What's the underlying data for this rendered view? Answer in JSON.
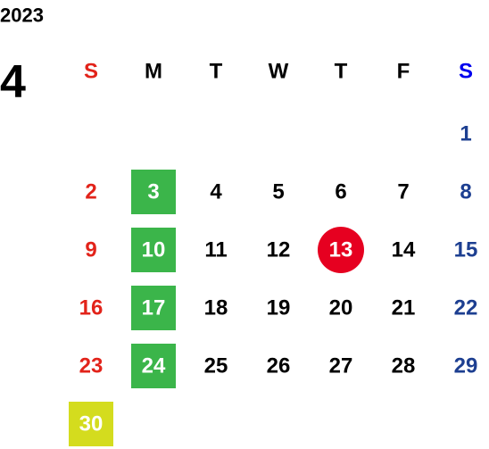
{
  "year": "2023",
  "month": "4",
  "weekdays": [
    "S",
    "M",
    "T",
    "W",
    "T",
    "F",
    "S"
  ],
  "weekday_colors": [
    "#e2231a",
    "#000000",
    "#000000",
    "#000000",
    "#000000",
    "#000000",
    "#0000ee"
  ],
  "day_colors": [
    "#e2231a",
    "#000000",
    "#000000",
    "#000000",
    "#000000",
    "#000000",
    "#1d3f91"
  ],
  "weeks": [
    [
      null,
      null,
      null,
      null,
      null,
      null,
      1
    ],
    [
      2,
      {
        "day": 3,
        "mark": "square",
        "color": "#3bb54a"
      },
      4,
      5,
      6,
      7,
      8
    ],
    [
      9,
      {
        "day": 10,
        "mark": "square",
        "color": "#3bb54a"
      },
      11,
      12,
      {
        "day": 13,
        "mark": "circle",
        "color": "#e60020"
      },
      14,
      15
    ],
    [
      16,
      {
        "day": 17,
        "mark": "square",
        "color": "#3bb54a"
      },
      18,
      19,
      20,
      21,
      22
    ],
    [
      23,
      {
        "day": 24,
        "mark": "square",
        "color": "#3bb54a"
      },
      25,
      26,
      27,
      28,
      29
    ],
    [
      {
        "day": 30,
        "mark": "square",
        "color": "#d4dc1e"
      }
    ]
  ]
}
